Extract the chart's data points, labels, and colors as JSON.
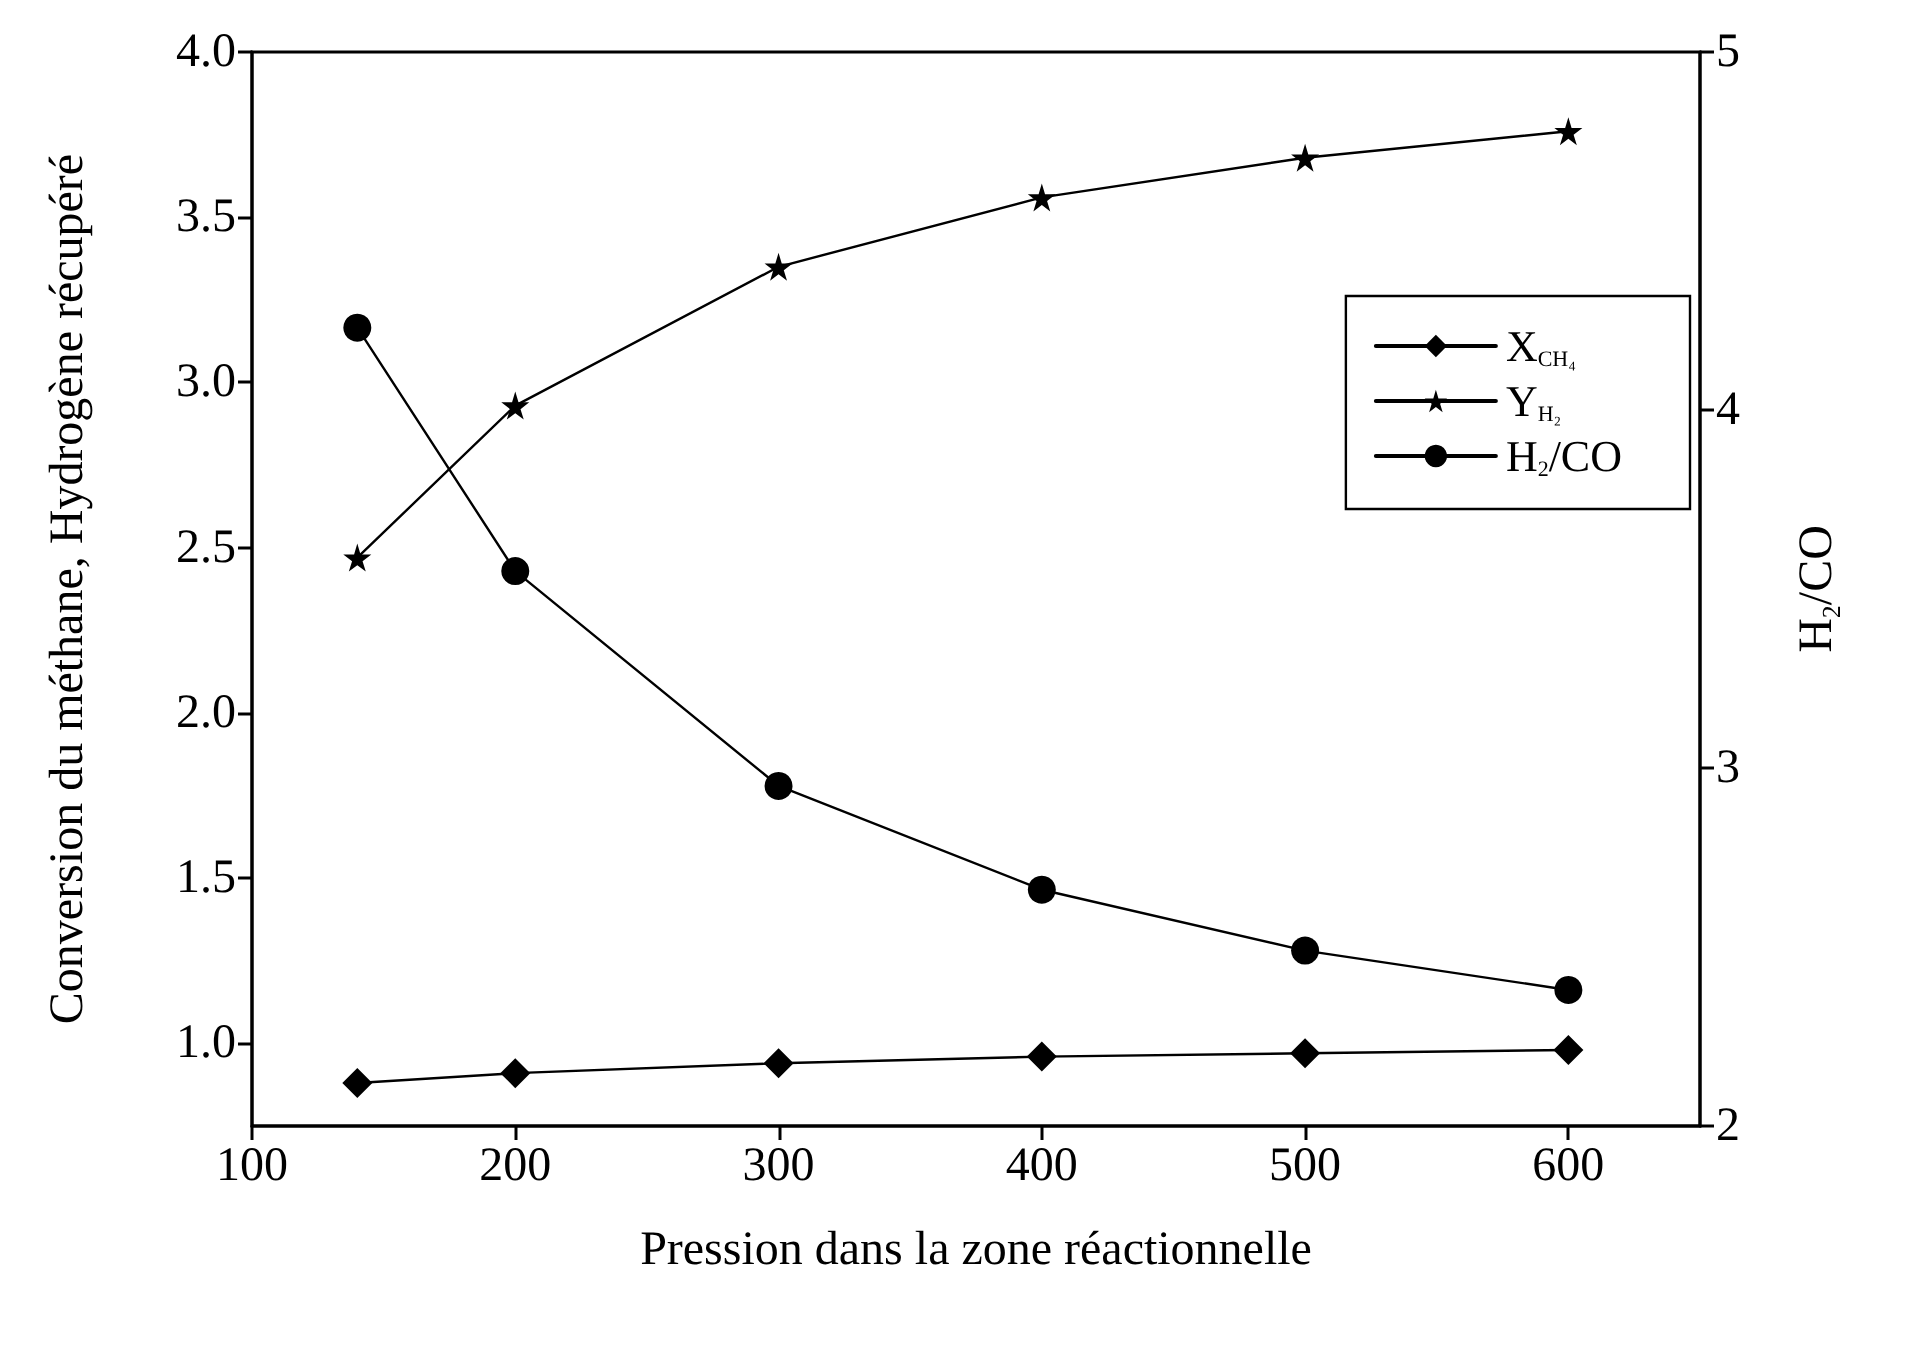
{
  "chart_data": {
    "type": "line",
    "xlabel": "Pression dans la zone réactionnelle",
    "ylabel": "Conversion du méthane, Hydrogène récupéré",
    "y2label": "H$_{2}$/CO",
    "x": [
      140,
      200,
      300,
      400,
      500,
      600
    ],
    "xlim": [
      100,
      650
    ],
    "xticks": [
      100,
      200,
      300,
      400,
      500,
      600
    ],
    "ylim": [
      0.75,
      4.0
    ],
    "yticks": [
      {
        "value": 1.0,
        "label": "1.0"
      },
      {
        "value": 1.5,
        "label": "1.5"
      },
      {
        "value": 2.0,
        "label": "2.0"
      },
      {
        "value": 2.5,
        "label": "2.5"
      },
      {
        "value": 3.0,
        "label": "3.0"
      },
      {
        "value": 3.5,
        "label": "3.5"
      },
      {
        "value": 4.0,
        "label": "4.0"
      }
    ],
    "y2lim": [
      2,
      5
    ],
    "y2ticks": [
      2,
      3,
      4,
      5
    ],
    "series": [
      {
        "name": "X$_{CH₄}$",
        "color": "#000000",
        "marker": "diamond",
        "values": [
          0.88,
          0.91,
          0.94,
          0.96,
          0.97,
          0.98
        ]
      },
      {
        "name": "Y$_{H₂}$",
        "color": "#000000",
        "marker": "star",
        "values": [
          2.47,
          2.93,
          3.35,
          3.56,
          3.68,
          3.76
        ]
      },
      {
        "name": "H$_{2}$/CO",
        "color": "#000000",
        "marker": "circle",
        "axis": "y2",
        "values": [
          4.23,
          3.55,
          2.95,
          2.66,
          2.49,
          2.38
        ]
      }
    ],
    "grid": false,
    "legend": "right",
    "line_style": "solid"
  }
}
